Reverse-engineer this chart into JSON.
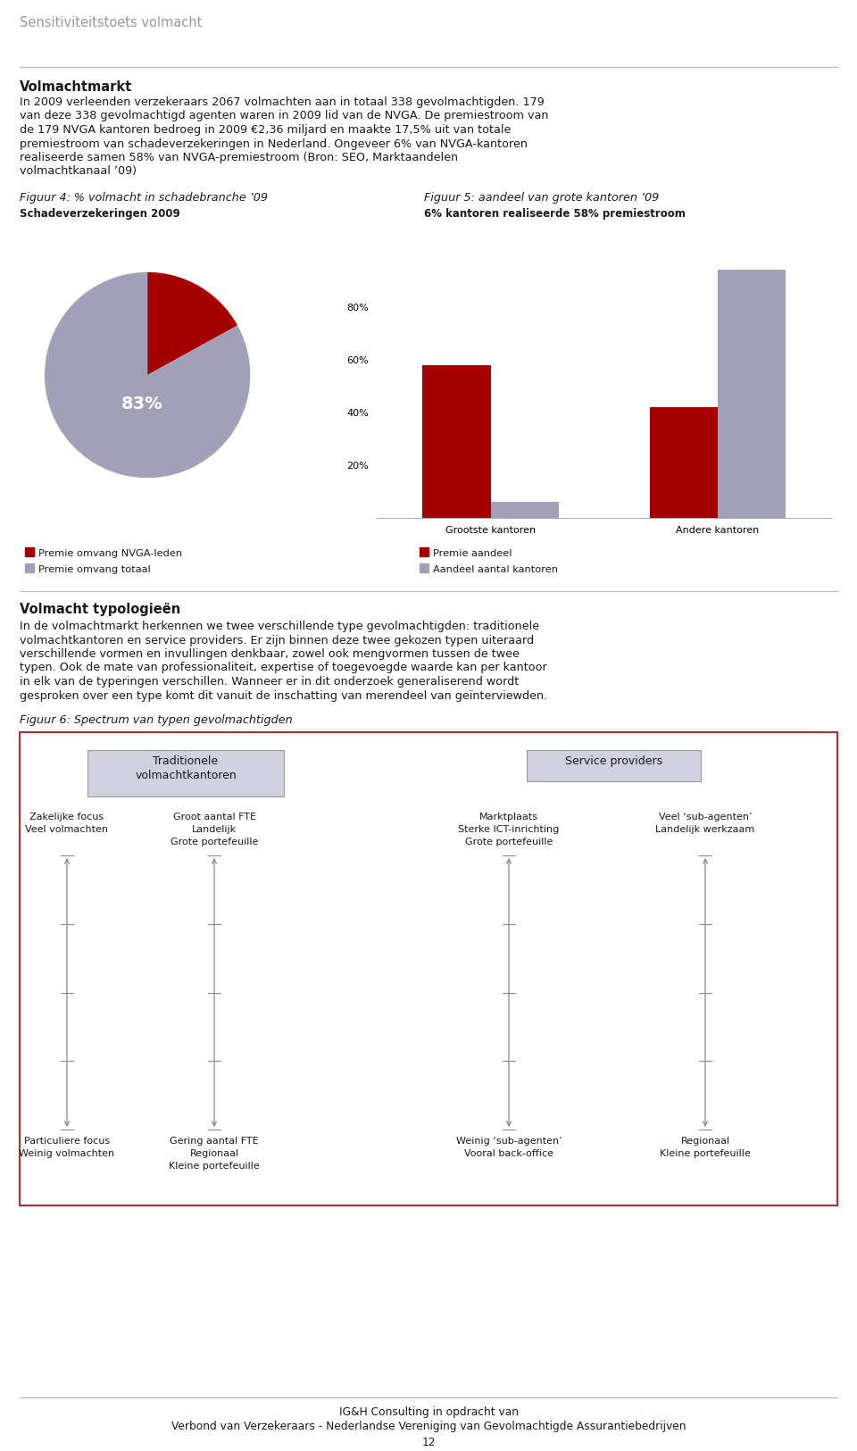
{
  "page_title": "Sensitiviteitstoets volmacht",
  "section1_title": "Volmachtmarkt",
  "fig4_title": "Figuur 4: % volmacht in schadebranche ’09",
  "fig4_subtitle": "Schadeverzekeringen 2009",
  "fig5_title": "Figuur 5: aandeel van grote kantoren ’09",
  "fig5_subtitle": "6% kantoren realiseerde 58% premiestroom",
  "pie_values": [
    17,
    83
  ],
  "pie_colors": [
    "#a50000",
    "#a0a0b8"
  ],
  "pie_label": "83%",
  "pie_label_color": "#ffffff",
  "bar_categories": [
    "Grootste kantoren",
    "Andere kantoren"
  ],
  "bar_premie": [
    0.58,
    0.42
  ],
  "bar_aandeel": [
    0.06,
    0.94
  ],
  "bar_color_premie": "#a50000",
  "bar_color_aandeel": "#a0a0b8",
  "bar_yticks": [
    0.0,
    0.2,
    0.4,
    0.6,
    0.8
  ],
  "bar_yticklabels": [
    "",
    "20%",
    "40%",
    "60%",
    "80%"
  ],
  "legend1_items": [
    "Premie omvang NVGA-leden",
    "Premie omvang totaal"
  ],
  "legend1_colors": [
    "#a50000",
    "#a0a0b8"
  ],
  "legend2_items": [
    "Premie aandeel",
    "Aandeel aantal kantoren"
  ],
  "legend2_colors": [
    "#a50000",
    "#a0a0b8"
  ],
  "section2_title": "Volmacht typologieën",
  "fig6_title": "Figuur 6: Spectrum van typen gevolmachtigden",
  "box1_title": "Traditionele\nvolmachtkantoren",
  "box2_title": "Service providers",
  "col1_top": [
    "Zakelijke focus",
    "Veel volmachten"
  ],
  "col2_top": [
    "Groot aantal FTE",
    "Landelijk",
    "Grote portefeuille"
  ],
  "col3_top": [
    "Marktplaats",
    "Sterke ICT-inrichting",
    "Grote portefeuille"
  ],
  "col4_top": [
    "Veel ‘sub-agenten’",
    "Landelijk werkzaam"
  ],
  "col1_bot": [
    "Particuliere focus",
    "Weinig volmachten"
  ],
  "col2_bot": [
    "Gering aantal FTE",
    "Regionaal",
    "Kleine portefeuille"
  ],
  "col3_bot": [
    "Weinig ‘sub-agenten’",
    "Vooral back-office"
  ],
  "col4_bot": [
    "Regionaal",
    "Kleine portefeuille"
  ],
  "footer_line1": "IG&H Consulting in opdracht van",
  "footer_line2": "Verbond van Verzekeraars - Nederlandse Vereniging van Gevolmachtigde Assurantiebedrijven",
  "footer_page": "12",
  "bg_color": "#ffffff",
  "text_color": "#1a1a1a",
  "box_border_color": "#b03030",
  "inner_box_bg": "#d0d0de",
  "section1_lines": [
    "In 2009 verleenden verzekeraars 2067 volmachten aan in totaal 338 gevolmachtigden. 179",
    "van deze 338 gevolmachtigd agenten waren in 2009 lid van de NVGA. De premiestroom van",
    "de 179 NVGA kantoren bedroeg in 2009 €2,36 miljard en maakte 17,5% uit van totale",
    "premiestroom van schadeverzekeringen in Nederland. Ongeveer 6% van NVGA-kantoren",
    "realiseerde samen 58% van NVGA-premiestroom (Bron: SEO, Marktaandelen",
    "volmachtkanaal ’09)"
  ],
  "section2_lines": [
    "In de volmachtmarkt herkennen we twee verschillende type gevolmachtigden: traditionele",
    "volmachtkantoren en service providers. Er zijn binnen deze twee gekozen typen uiteraard",
    "verschillende vormen en invullingen denkbaar, zowel ook mengvormen tussen de twee",
    "typen. Ook de mate van professionaliteit, expertise of toegevoegde waarde kan per kantoor",
    "in elk van de typeringen verschillen. Wanneer er in dit onderzoek generaliserend wordt",
    "gesproken over een type komt dit vanuit de inschatting van merendeel van geïnterviewden."
  ]
}
